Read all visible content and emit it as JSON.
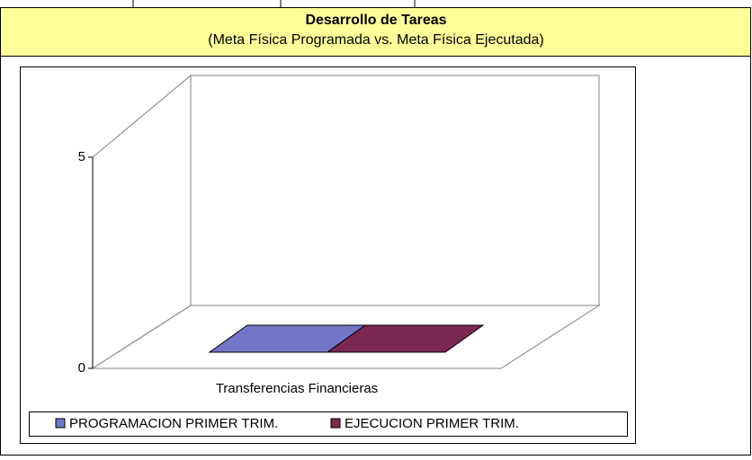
{
  "chart_data": {
    "type": "bar3d",
    "title": "Desarrollo de Tareas",
    "subtitle": "(Meta Física Programada vs. Meta Física Ejecutada)",
    "categories": [
      "Transferencias Financieras"
    ],
    "series": [
      {
        "name": "PROGRAMACION PRIMER TRIM.",
        "color": "#7375c8",
        "values": [
          0
        ]
      },
      {
        "name": "EJECUCION PRIMER TRIM.",
        "color": "#7a2852",
        "values": [
          0
        ]
      }
    ],
    "ylim": [
      0,
      5
    ],
    "yticks": [
      0,
      5
    ]
  }
}
